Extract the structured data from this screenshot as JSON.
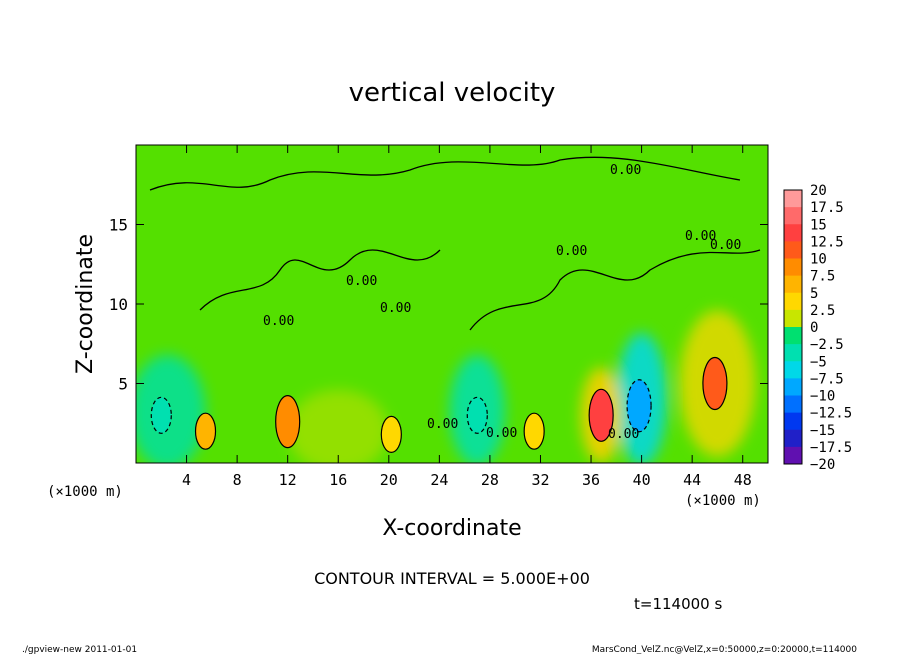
{
  "chart_data": {
    "type": "heatmap",
    "title": "vertical velocity",
    "xlabel": "X-coordinate",
    "ylabel": "Z-coordinate",
    "x_unit_left": "(×1000 m)",
    "x_unit_right": "(×1000 m)",
    "xlim": [
      0,
      50
    ],
    "ylim": [
      0,
      20
    ],
    "x_ticks": [
      4,
      8,
      12,
      16,
      20,
      24,
      28,
      32,
      36,
      40,
      44,
      48
    ],
    "y_ticks": [
      5,
      10,
      15
    ],
    "colorbar": {
      "labels": [
        "20",
        "17.5",
        "15",
        "12.5",
        "10",
        "7.5",
        "5",
        "2.5",
        "0",
        "−2.5",
        "−5",
        "−7.5",
        "−10",
        "−12.5",
        "−15",
        "−17.5",
        "−20"
      ],
      "colors": [
        "#ff9a9a",
        "#ff6a6a",
        "#ff4040",
        "#ff5a1a",
        "#ff8c00",
        "#ffb400",
        "#ffd800",
        "#c8e600",
        "#54e000",
        "#00e070",
        "#00e0b0",
        "#00d8e8",
        "#00a8ff",
        "#0070ff",
        "#0038f0",
        "#2020c8",
        "#6010b0"
      ]
    },
    "contour_labels": [
      "0.00",
      "0.00",
      "0.00",
      "0.00",
      "0.00",
      "0.00",
      "0.00",
      "0.00",
      "0.00",
      "0.00"
    ],
    "features": [
      {
        "x": 5.5,
        "z": 2.0,
        "value": 7.5
      },
      {
        "x": 12.0,
        "z": 2.6,
        "value": 10
      },
      {
        "x": 20.2,
        "z": 1.8,
        "value": 5
      },
      {
        "x": 31.5,
        "z": 2.0,
        "value": 5
      },
      {
        "x": 36.8,
        "z": 3.0,
        "value": 15
      },
      {
        "x": 39.8,
        "z": 3.6,
        "value": -10
      },
      {
        "x": 45.8,
        "z": 5.0,
        "value": 12.5
      },
      {
        "x": 2.0,
        "z": 3.0,
        "value": -5
      },
      {
        "x": 27.0,
        "z": 3.0,
        "value": -5
      }
    ]
  },
  "contour_interval": "CONTOUR INTERVAL = 5.000E+00",
  "time_label": "t=114000 s",
  "footer_left": "./gpview-new  2011-01-01",
  "footer_right": "MarsCond_VelZ.nc@VelZ,x=0:50000,z=0:20000,t=114000"
}
